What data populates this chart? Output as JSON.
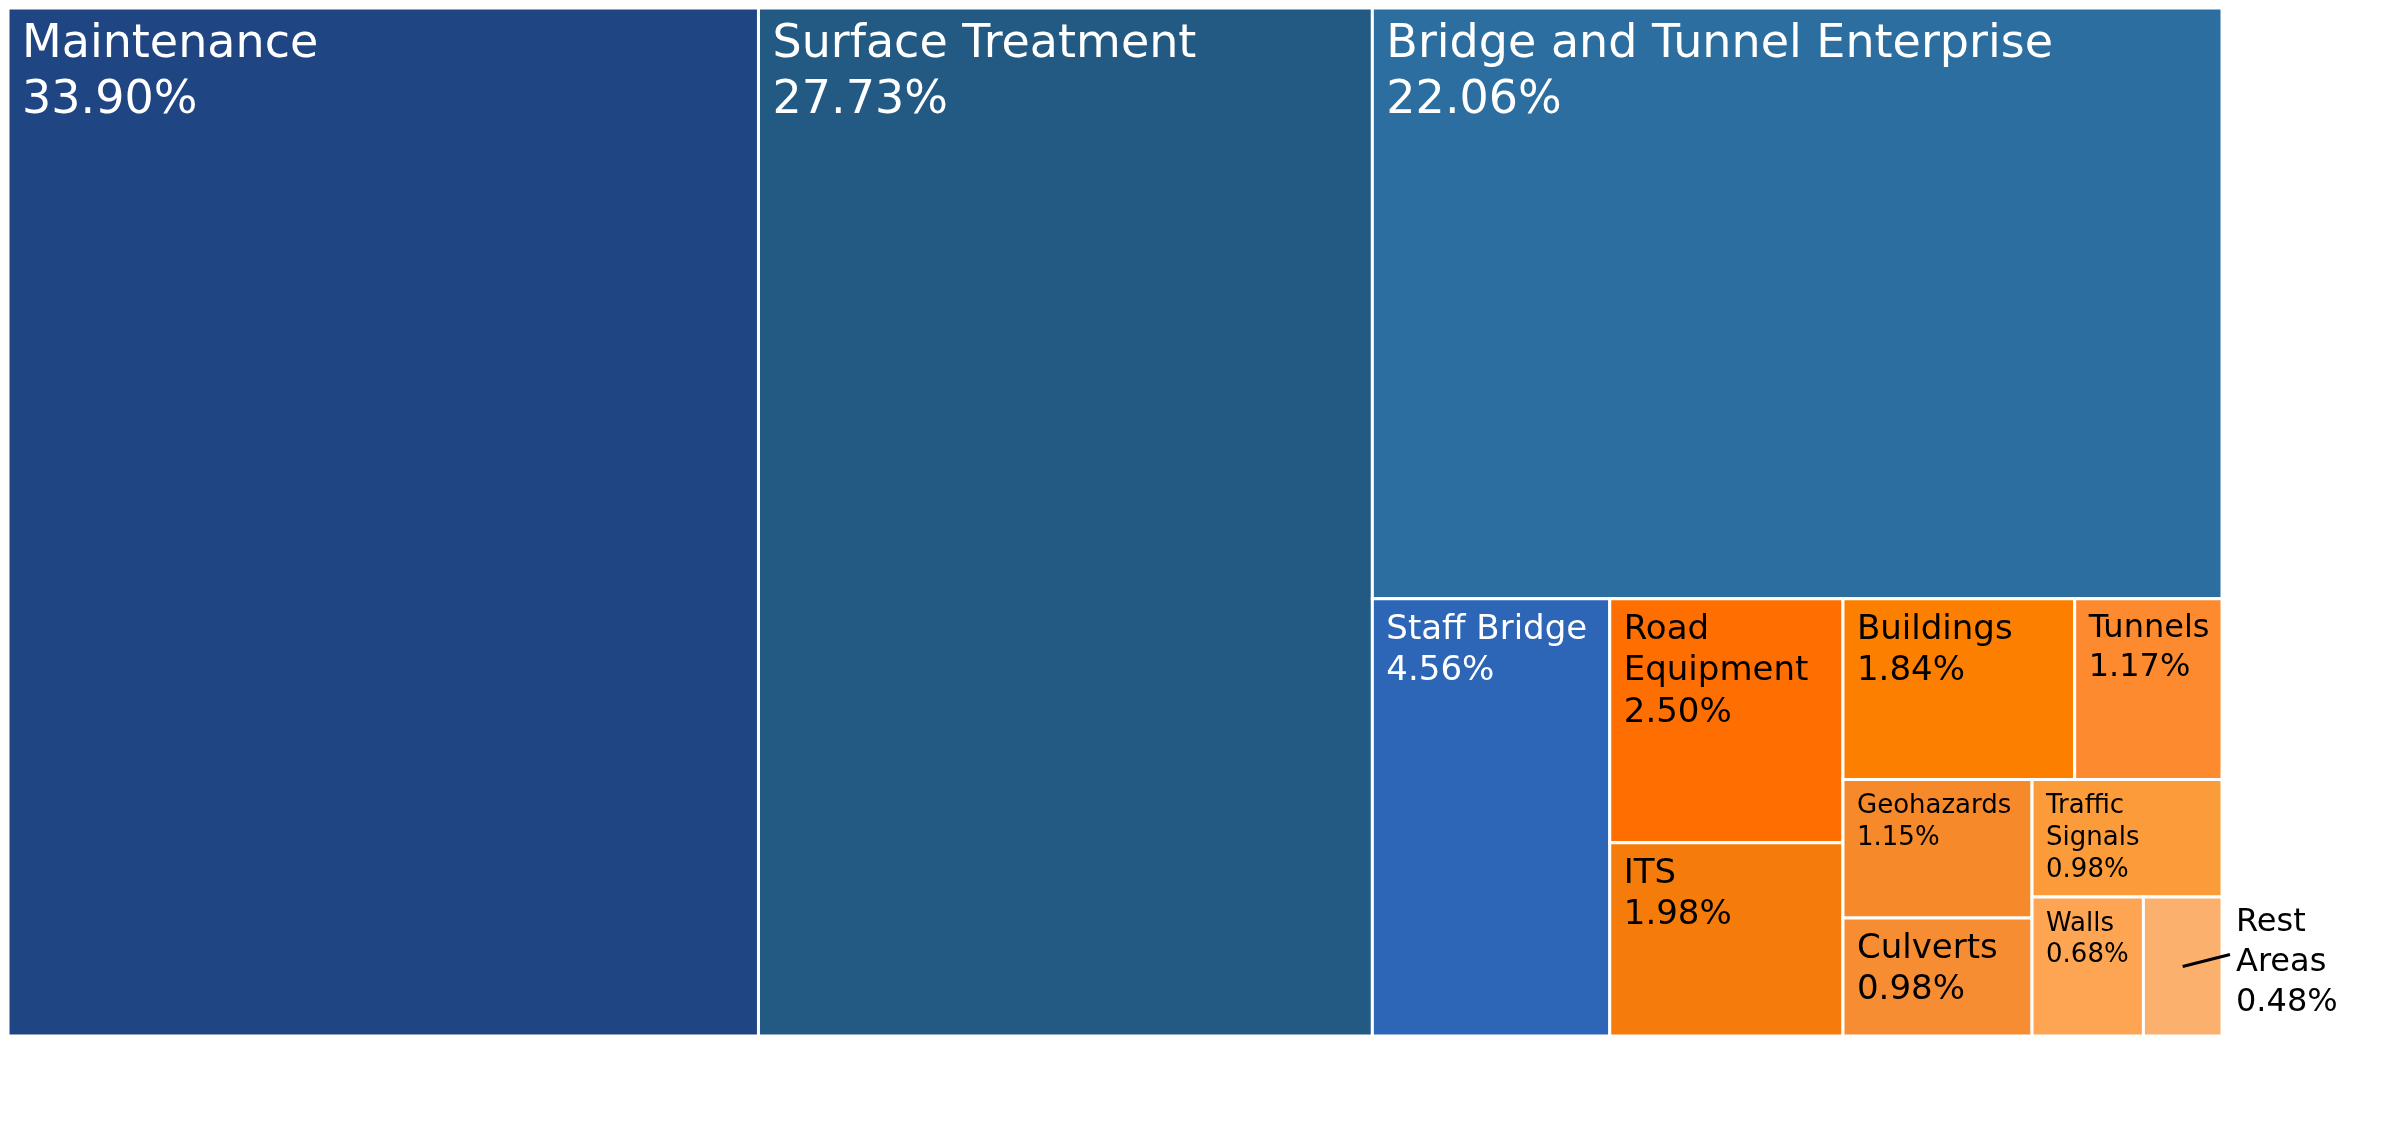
{
  "chart_data": {
    "type": "other",
    "categories": [
      "Maintenance",
      "Surface Treatment",
      "Bridge and Tunnel Enterprise",
      "Staff Bridge",
      "Road Equipment",
      "ITS",
      "Buildings",
      "Tunnels",
      "Geohazards",
      "Culverts",
      "Traffic Signals",
      "Walls",
      "Rest Areas"
    ],
    "values": [
      33.9,
      27.73,
      22.06,
      4.56,
      2.5,
      1.98,
      1.84,
      1.17,
      1.15,
      0.98,
      0.98,
      0.68,
      0.48
    ],
    "value_labels": [
      "33.90%",
      "27.73%",
      "22.06%",
      "4.56%",
      "2.50%",
      "1.98%",
      "1.84%",
      "1.17%",
      "1.15%",
      "0.98%",
      "0.98%",
      "0.68%",
      "0.48%"
    ],
    "colors": [
      "#1f4583",
      "#225a84",
      "#2c6e9f",
      "#2e66b7",
      "#ff6e00",
      "#f57c0a",
      "#fd7f00",
      "#fd8a2e",
      "#f6892a",
      "#f78d32",
      "#fc9b3a",
      "#fda552",
      "#fbb06d"
    ]
  }
}
